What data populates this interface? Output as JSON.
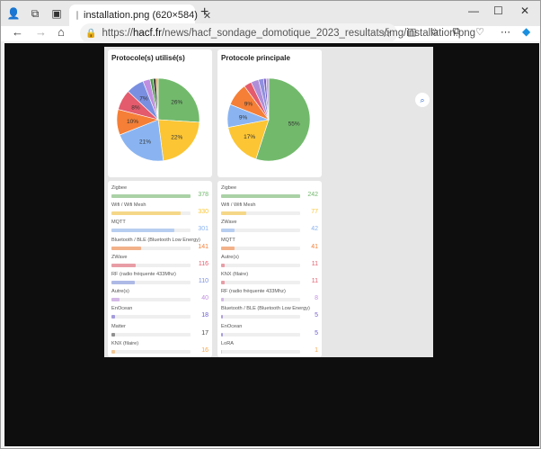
{
  "browser": {
    "tab_title": "installation.png (620×584)",
    "url_host": "hacf.fr",
    "url_rest": "/news/hacf_sondage_domotique_2023_resultats/img/installation.png",
    "url_scheme": "https://",
    "new_tab": "+",
    "close_tab": "✕",
    "win_min": "—",
    "win_max": "☐",
    "win_close": "✕"
  },
  "chart_data": [
    {
      "type": "pie",
      "title": "Protocole(s) utilisé(s)",
      "slices": [
        {
          "label": "26%",
          "value": 26,
          "color": "#72b96c"
        },
        {
          "label": "22%",
          "value": 22,
          "color": "#fbc534"
        },
        {
          "label": "21%",
          "value": 21,
          "color": "#8ab4f1"
        },
        {
          "label": "10%",
          "value": 10,
          "color": "#f57f36"
        },
        {
          "label": "8%",
          "value": 8,
          "color": "#e35b6c"
        },
        {
          "label": "7%",
          "value": 7,
          "color": "#7a8fe0"
        },
        {
          "label": "",
          "value": 2.8,
          "color": "#c08ee0"
        },
        {
          "label": "",
          "value": 1.2,
          "color": "#4d9e4a"
        },
        {
          "label": "",
          "value": 1.2,
          "color": "#444444"
        },
        {
          "label": "",
          "value": 0.8,
          "color": "#f4a950"
        }
      ]
    },
    {
      "type": "pie",
      "title": "Protocole principale",
      "slices": [
        {
          "label": "55%",
          "value": 55,
          "color": "#72b96c"
        },
        {
          "label": "17%",
          "value": 17,
          "color": "#fbc534"
        },
        {
          "label": "9%",
          "value": 9,
          "color": "#8ab4f1"
        },
        {
          "label": "9%",
          "value": 9,
          "color": "#f57f36"
        },
        {
          "label": "",
          "value": 3,
          "color": "#e35b6c"
        },
        {
          "label": "",
          "value": 3,
          "color": "#b08ed8"
        },
        {
          "label": "",
          "value": 2,
          "color": "#9090e0"
        },
        {
          "label": "",
          "value": 1,
          "color": "#7a60c8"
        },
        {
          "label": "",
          "value": 1,
          "color": "#c0a0e0"
        }
      ]
    },
    {
      "type": "bar",
      "title": "Protocole(s) utilisé(s)",
      "categories": [
        "Zigbee",
        "Wifi / Wifi Mesh",
        "MQTT",
        "Bluetooth / BLE (Bluetooth Low Energy)",
        "ZWave",
        "RF (radio fréquente 433Mhz)",
        "Autre(s)",
        "EnOcean",
        "Matter",
        "KNX (filaire)"
      ],
      "values": [
        378,
        330,
        301,
        141,
        116,
        110,
        40,
        18,
        17,
        16
      ],
      "colors": [
        "#72b96c",
        "#fbc534",
        "#8ab4f1",
        "#f57f36",
        "#e35b6c",
        "#7a8fe0",
        "#c08ee0",
        "#6a5acd",
        "#444444",
        "#f4a950"
      ]
    },
    {
      "type": "bar",
      "title": "Protocole principale",
      "categories": [
        "Zigbee",
        "Wifi / Wifi Mesh",
        "ZWave",
        "MQTT",
        "Autre(s)",
        "KNX (filaire)",
        "RF (radio fréquente 433Mhz)",
        "Bluetooth / BLE (Bluetooth Low Energy)",
        "EnOcean",
        "LoRA"
      ],
      "values": [
        242,
        77,
        42,
        41,
        11,
        11,
        8,
        5,
        5,
        1
      ],
      "colors": [
        "#72b96c",
        "#fbc534",
        "#8ab4f1",
        "#f57f36",
        "#e35b6c",
        "#e35b6c",
        "#c08ee0",
        "#7a60c8",
        "#6a5acd",
        "#f4a950"
      ]
    }
  ]
}
